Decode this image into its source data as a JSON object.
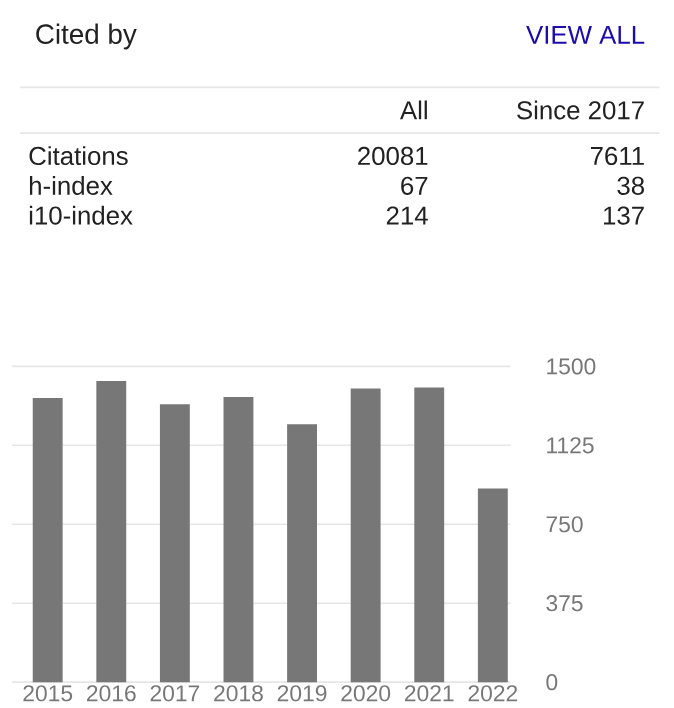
{
  "chart_data": {
    "type": "bar",
    "title": "Cited by",
    "annotations": [
      "VIEW ALL",
      "All",
      "Since 2017",
      "Citations",
      "20081",
      "7611",
      "h-index",
      "67",
      "38",
      "i10-index",
      "214",
      "137"
    ],
    "categories": [
      "2015",
      "2016",
      "2017",
      "2018",
      "2019",
      "2020",
      "2021",
      "2022"
    ],
    "values": [
      1350,
      1430,
      1320,
      1355,
      1225,
      1395,
      1400,
      920
    ],
    "color": "#777777",
    "ylim": [
      0,
      1500
    ],
    "yticks": [
      0,
      375,
      750,
      1125,
      1500
    ],
    "grid": "y"
  }
}
